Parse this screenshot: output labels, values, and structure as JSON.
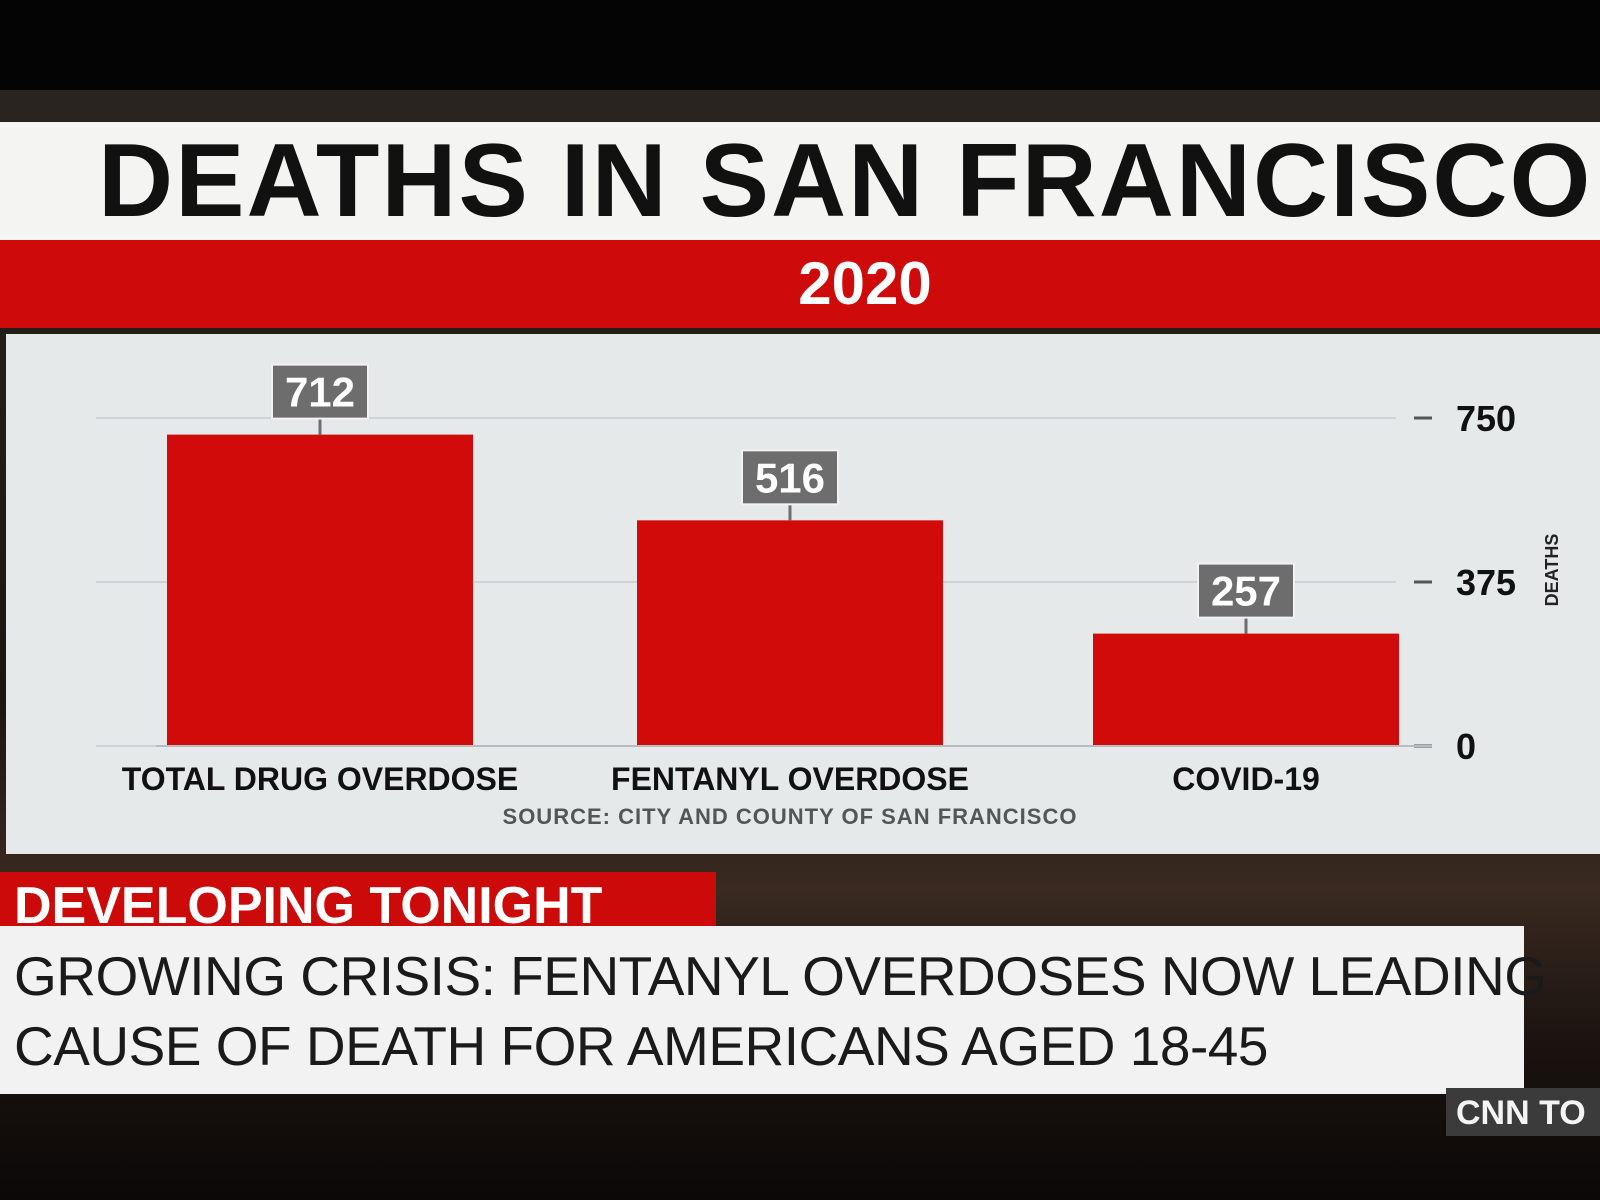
{
  "graphic": {
    "title": "DEATHS IN SAN FRANCISCO",
    "year": "2020",
    "source": "SOURCE: CITY AND COUNTY OF SAN FRANCISCO"
  },
  "chart_data": {
    "type": "bar",
    "title": "DEATHS IN SAN FRANCISCO",
    "subtitle": "2020",
    "categories": [
      "TOTAL DRUG OVERDOSE",
      "FENTANYL OVERDOSE",
      "COVID-19"
    ],
    "values": [
      712,
      516,
      257
    ],
    "value_labels": [
      "712",
      "516",
      "257"
    ],
    "ylabel": "DEATHS",
    "ylim": [
      0,
      750
    ],
    "yticks": [
      0,
      375,
      750
    ],
    "ytick_labels": [
      "0",
      "375",
      "750"
    ],
    "y_axis_side": "right",
    "grid": true,
    "bar_color": "#d10a0a",
    "label_box_color": "#6d6d6d"
  },
  "lower_third": {
    "tag": "DEVELOPING TONIGHT",
    "headline_line1": "GROWING CRISIS: FENTANYL OVERDOSES NOW LEADING",
    "headline_line2": "CAUSE OF DEATH FOR AMERICANS AGED 18-45"
  },
  "network": {
    "bug": "CNN TO"
  },
  "colors": {
    "accent_red": "#cc0a0a",
    "title_text": "#111111",
    "panel_bg": "#e6e9ea"
  }
}
